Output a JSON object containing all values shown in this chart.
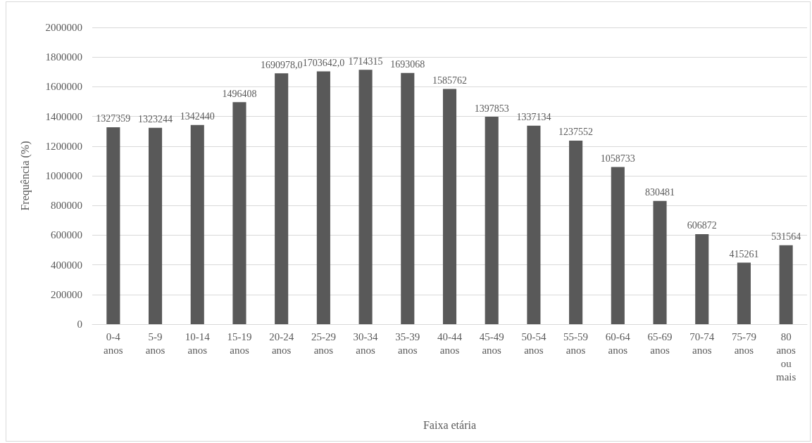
{
  "chart_data": {
    "type": "bar",
    "xlabel": "Faixa etária",
    "ylabel": "Frequência (%)",
    "categories": [
      "0-4 anos",
      "5-9 anos",
      "10-14 anos",
      "15-19 anos",
      "20-24 anos",
      "25-29 anos",
      "30-34 anos",
      "35-39 anos",
      "40-44 anos",
      "45-49 anos",
      "50-54 anos",
      "55-59 anos",
      "60-64 anos",
      "65-69 anos",
      "70-74 anos",
      "75-79 anos",
      "80 anos ou mais"
    ],
    "values": [
      1327359,
      1323244,
      1342440,
      1496408,
      1690978,
      1703642,
      1714315,
      1693068,
      1585762,
      1397853,
      1337134,
      1237552,
      1058733,
      830481,
      606872,
      415261,
      531564
    ],
    "value_labels": [
      "1327359",
      "1323244",
      "1342440",
      "1496408",
      "1690978,0",
      "1703642,0",
      "1714315",
      "1693068",
      "1585762",
      "1397853",
      "1337134",
      "1237552",
      "1058733",
      "830481",
      "606872",
      "415261",
      "531564"
    ],
    "color": "#595959",
    "ylim": [
      0,
      2000000
    ],
    "yticks": [
      0,
      200000,
      400000,
      600000,
      800000,
      1000000,
      1200000,
      1400000,
      1600000,
      1800000,
      2000000
    ],
    "grid": "y"
  }
}
